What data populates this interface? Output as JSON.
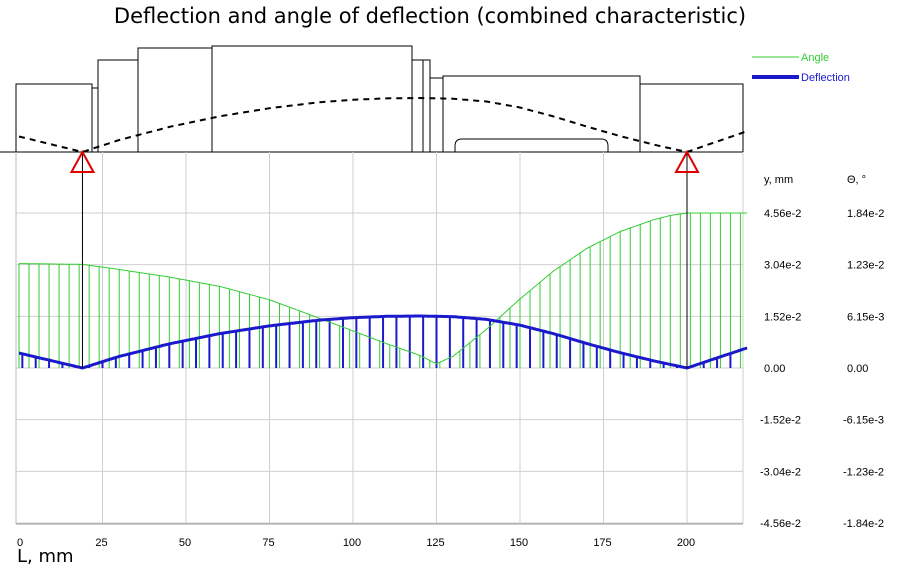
{
  "chart_data": {
    "type": "line",
    "title": "Deflection and angle of deflection (combined characteristic)",
    "xlabel": "L, mm",
    "ylabel_left": "y, mm",
    "ylabel_right": "Θ, °",
    "xlim": [
      0,
      218
    ],
    "x_ticks": [
      0,
      25,
      50,
      75,
      100,
      125,
      150,
      175,
      200
    ],
    "y_ticks": [
      "4.56e-2",
      "3.04e-2",
      "1.52e-2",
      "0.00",
      "-1.52e-2",
      "-3.04e-2",
      "-4.56e-2"
    ],
    "y_values": [
      0.0456,
      0.0304,
      0.0152,
      0,
      -0.0152,
      -0.0304,
      -0.0456
    ],
    "theta_ticks": [
      "1.84e-2",
      "1.23e-2",
      "6.15e-3",
      "0.00",
      "-6.15e-3",
      "-1.23e-2",
      "-1.84e-2"
    ],
    "theta_values": [
      0.0184,
      0.0123,
      0.00615,
      0,
      -0.00615,
      -0.0123,
      -0.0184
    ],
    "supports_x": [
      19,
      200
    ],
    "legend_position": "top-right",
    "grid": true,
    "series": [
      {
        "name": "Angle",
        "color": "#33cc33",
        "x": [
          0,
          19,
          30,
          45,
          60,
          75,
          90,
          100,
          110,
          120,
          125,
          130,
          140,
          150,
          160,
          170,
          180,
          190,
          195,
          200,
          218
        ],
        "y": [
          0.0124,
          0.0123,
          0.0117,
          0.0108,
          0.0097,
          0.0081,
          0.0059,
          0.0044,
          0.0029,
          0.0015,
          0.0005,
          0.0014,
          0.0046,
          0.0082,
          0.0115,
          0.0142,
          0.0162,
          0.0176,
          0.0181,
          0.0184,
          0.0184
        ]
      },
      {
        "name": "Deflection",
        "color": "#1a1acc",
        "x": [
          0,
          19,
          30,
          45,
          60,
          75,
          90,
          100,
          110,
          120,
          125,
          130,
          140,
          150,
          160,
          170,
          180,
          190,
          200,
          210,
          218
        ],
        "y": [
          0.0044,
          0.0,
          0.0034,
          0.0071,
          0.0101,
          0.0124,
          0.0141,
          0.0148,
          0.0152,
          0.0153,
          0.0152,
          0.0151,
          0.0143,
          0.0126,
          0.0101,
          0.0072,
          0.0045,
          0.0021,
          0.0,
          0.0033,
          0.0059
        ]
      }
    ]
  }
}
